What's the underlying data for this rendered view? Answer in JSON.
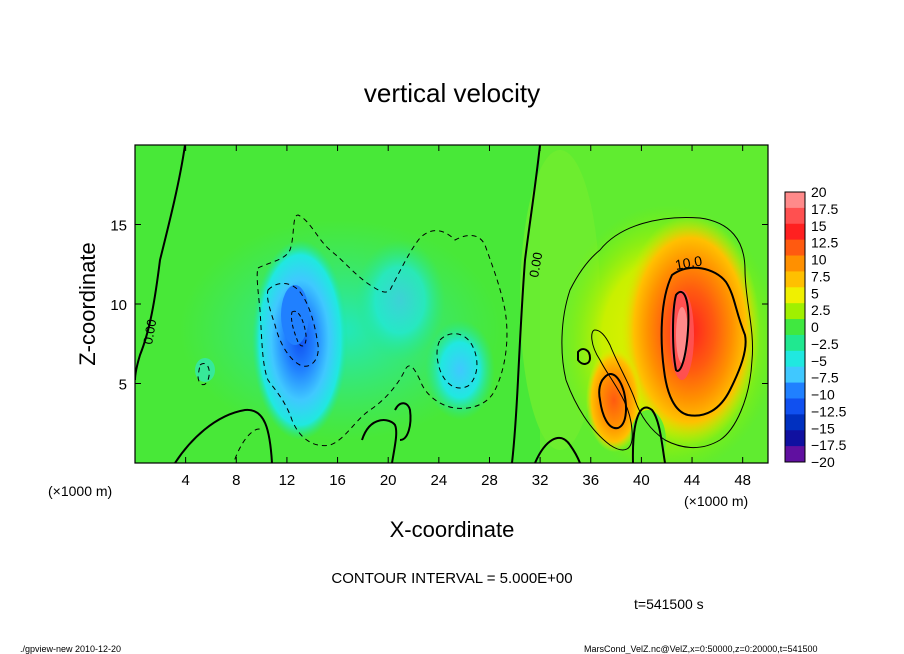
{
  "chart_data": {
    "type": "heatmap",
    "title": "vertical velocity",
    "xlabel": "X-coordinate",
    "ylabel": "Z-coordinate",
    "x_unit_left": "(×1000 m)",
    "x_unit_right": "(×1000 m)",
    "xlim": [
      0,
      50
    ],
    "ylim": [
      0,
      20
    ],
    "x_ticks": [
      4,
      8,
      12,
      16,
      20,
      24,
      28,
      32,
      36,
      40,
      44,
      48
    ],
    "y_ticks": [
      5,
      10,
      15
    ],
    "colorbar": {
      "labels": [
        "20",
        "17.5",
        "15",
        "12.5",
        "10",
        "7.5",
        "5",
        "2.5",
        "0",
        "−2.5",
        "−5",
        "−7.5",
        "−10",
        "−12.5",
        "−15",
        "−17.5",
        "−20"
      ],
      "colors": [
        "#ff8a8a",
        "#ff5050",
        "#ff2020",
        "#ff5a10",
        "#ff9000",
        "#ffc000",
        "#f0f000",
        "#a0f000",
        "#40e840",
        "#20e890",
        "#20e8e0",
        "#40c8ff",
        "#2080ff",
        "#1050f0",
        "#0030c0",
        "#1010a0",
        "#6010a0"
      ]
    },
    "contour_labels": [
      "0.00",
      "0.00",
      "10.0"
    ],
    "contour_interval_text": "CONTOUR INTERVAL = 5.000E+00",
    "time_text": "t=541500 s",
    "field_summary": [
      {
        "kind": "updraft",
        "x_center": 43,
        "z_center": 9,
        "peak": 17.5
      },
      {
        "kind": "updraft",
        "x_center": 38,
        "z_center": 5,
        "peak": 12.5
      },
      {
        "kind": "downdraft",
        "x_center": 13,
        "z_center": 9,
        "peak": -10
      },
      {
        "kind": "downdraft",
        "x_center": 25,
        "z_center": 6,
        "peak": -7.5
      }
    ]
  },
  "footer": {
    "left": "./gpview-new  2010-12-20",
    "right": "MarsCond_VelZ.nc@VelZ,x=0:50000,z=0:20000,t=541500"
  }
}
